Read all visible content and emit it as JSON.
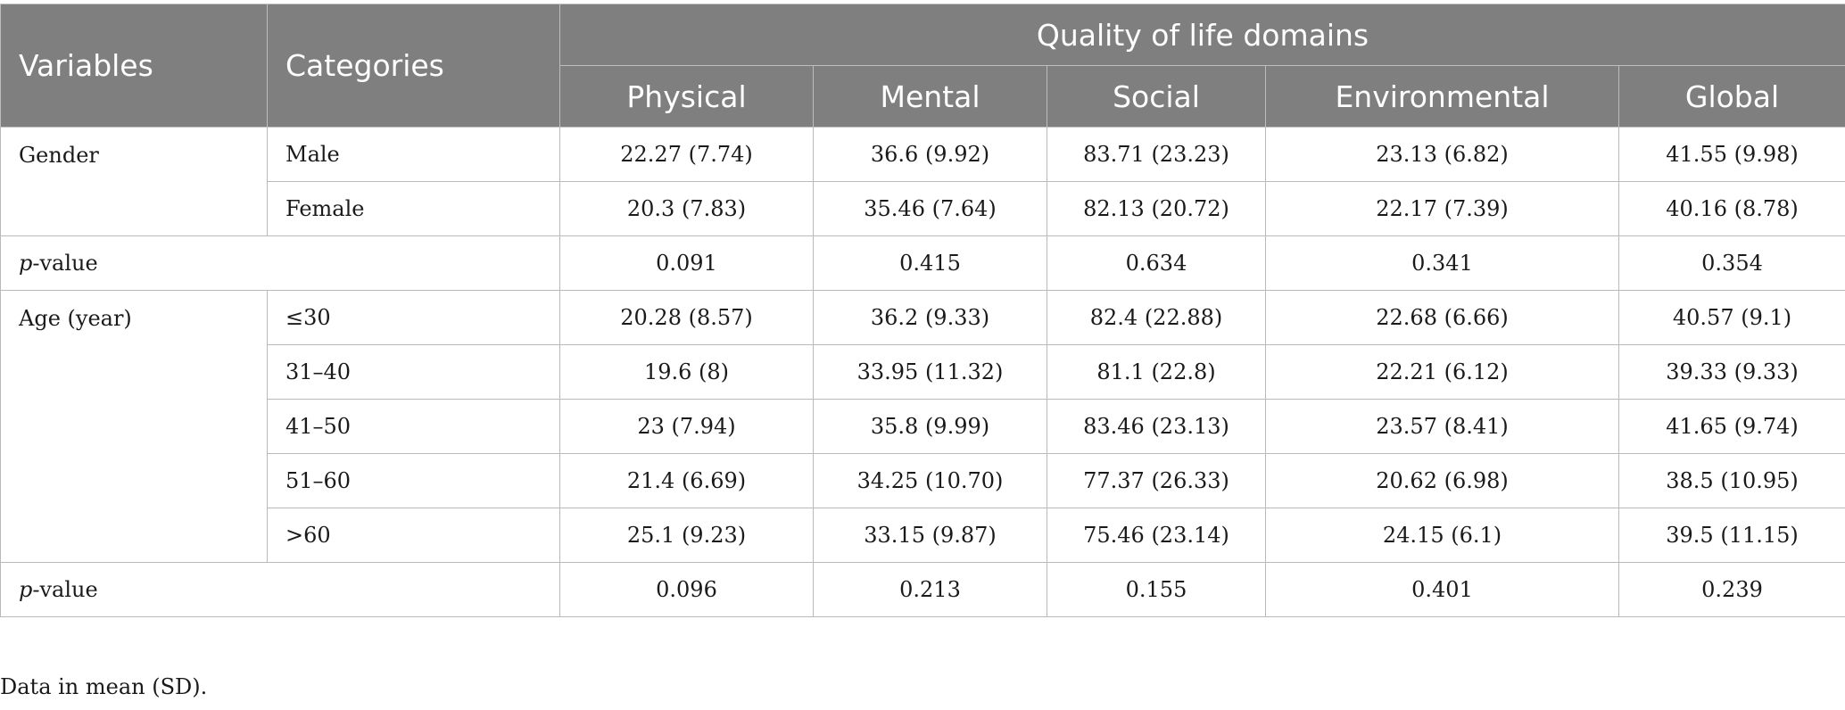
{
  "table": {
    "header": {
      "variables": "Variables",
      "categories": "Categories",
      "group": "Quality of life domains",
      "domains": [
        "Physical",
        "Mental",
        "Social",
        "Environmental",
        "Global"
      ]
    },
    "rows": [
      {
        "variable": "Gender",
        "category": "Male",
        "values": [
          "22.27 (7.74)",
          "36.6 (9.92)",
          "83.71 (23.23)",
          "23.13 (6.82)",
          "41.55 (9.98)"
        ]
      },
      {
        "category": "Female",
        "values": [
          "20.3 (7.83)",
          "35.46 (7.64)",
          "82.13 (20.72)",
          "22.17 (7.39)",
          "40.16 (8.78)"
        ]
      },
      {
        "p_letter": "p",
        "p_suffix": "-value",
        "values": [
          "0.091",
          "0.415",
          "0.634",
          "0.341",
          "0.354"
        ]
      },
      {
        "variable": "Age (year)",
        "category": "≤30",
        "values": [
          "20.28 (8.57)",
          "36.2 (9.33)",
          "82.4 (22.88)",
          "22.68 (6.66)",
          "40.57 (9.1)"
        ]
      },
      {
        "category": "31–40",
        "values": [
          "19.6 (8)",
          "33.95 (11.32)",
          "81.1 (22.8)",
          "22.21 (6.12)",
          "39.33 (9.33)"
        ]
      },
      {
        "category": "41–50",
        "values": [
          "23 (7.94)",
          "35.8 (9.99)",
          "83.46 (23.13)",
          "23.57 (8.41)",
          "41.65 (9.74)"
        ]
      },
      {
        "category": "51–60",
        "values": [
          "21.4 (6.69)",
          "34.25 (10.70)",
          "77.37 (26.33)",
          "20.62 (6.98)",
          "38.5 (10.95)"
        ]
      },
      {
        "category": ">60",
        "values": [
          "25.1 (9.23)",
          "33.15 (9.87)",
          "75.46 (23.14)",
          "24.15 (6.1)",
          "39.5 (11.15)"
        ]
      },
      {
        "p_letter": "p",
        "p_suffix": "-value",
        "values": [
          "0.096",
          "0.213",
          "0.155",
          "0.401",
          "0.239"
        ]
      }
    ]
  },
  "footnote": "Data in mean (SD)."
}
